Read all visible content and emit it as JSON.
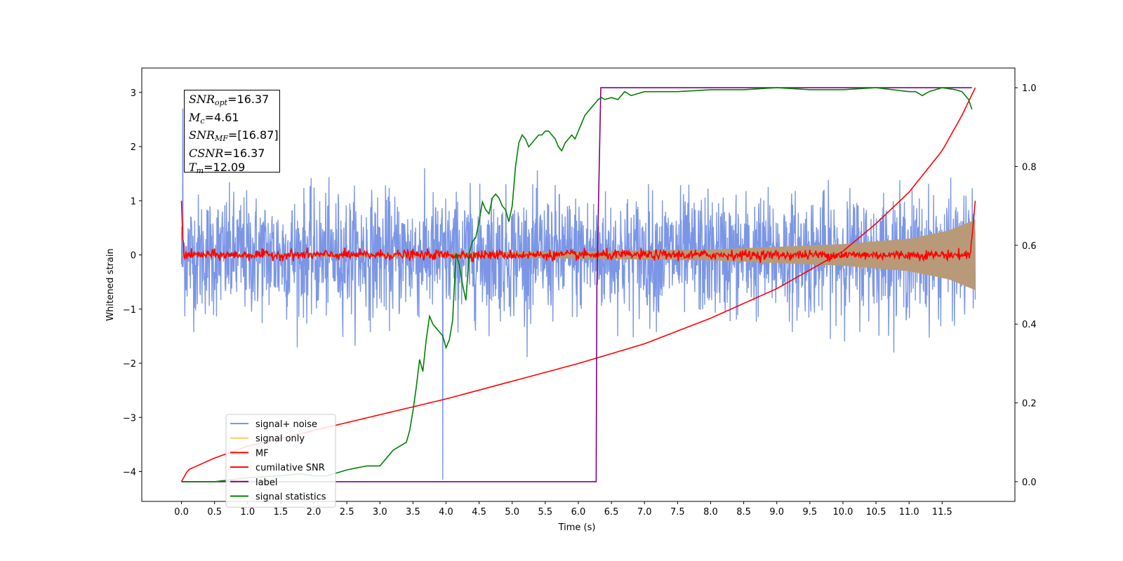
{
  "chart_data": {
    "type": "line",
    "xlabel": "Time (s)",
    "ylabel": "Whitened strain",
    "xlim": [
      -0.6,
      12.6
    ],
    "ylim": [
      -4.55,
      3.45
    ],
    "ylim_right": [
      -0.05,
      1.05
    ],
    "x_ticks": [
      "0.0",
      "0.5",
      "1.0",
      "1.5",
      "2.0",
      "2.5",
      "3.0",
      "3.5",
      "4.0",
      "4.5",
      "5.0",
      "5.5",
      "6.0",
      "6.5",
      "7.0",
      "7.5",
      "8.0",
      "8.5",
      "9.0",
      "9.5",
      "10.0",
      "10.5",
      "11.0",
      "11.5"
    ],
    "y_ticks_left": [
      "3",
      "2",
      "1",
      "0",
      "−1",
      "−2",
      "−3",
      "−4"
    ],
    "y_ticks_right": [
      "1.0",
      "0.8",
      "0.6",
      "0.4",
      "0.2",
      "0.0"
    ],
    "grid": false,
    "legend_position": "lower-left",
    "legend": [
      {
        "name": "signal+ noise",
        "color": "#7b96e6"
      },
      {
        "name": "signal only",
        "color": "#fbc96b"
      },
      {
        "name": "MF",
        "color": "#ff0000"
      },
      {
        "name": "cumilative SNR",
        "color": "#ff0000"
      },
      {
        "name": "label",
        "color": "#800080"
      },
      {
        "name": "signal statistics",
        "color": "#008000"
      }
    ],
    "annotation": [
      {
        "sym": "SNR",
        "sub": "opt",
        "rest": "=16.37"
      },
      {
        "sym": "M",
        "sub": "c",
        "rest": "=4.61"
      },
      {
        "sym": "SNR",
        "sub": "MF",
        "rest": "=[16.87]"
      },
      {
        "sym": "CSNR",
        "sub": "",
        "rest": "=16.37"
      },
      {
        "sym": "T",
        "sub": "m",
        "rest": "=12.09"
      }
    ],
    "series": [
      {
        "name": "signal+ noise",
        "axis": "left",
        "style": "noise band, approx. ±1.3 std spikes between 0 and 12 s",
        "x_range": [
          0.0,
          12.0
        ],
        "typical_min": -1.4,
        "typical_max": 1.3,
        "extreme_min": -4.15,
        "extreme_max": 2.7
      },
      {
        "name": "signal only",
        "axis": "left",
        "style": "chirp envelope (filled, growing)",
        "x": [
          0.0,
          4.0,
          8.0,
          10.0,
          11.0,
          11.6,
          11.9,
          12.0
        ],
        "upper": [
          0.02,
          0.04,
          0.1,
          0.2,
          0.3,
          0.45,
          0.6,
          0.65
        ],
        "lower": [
          -0.02,
          -0.04,
          -0.1,
          -0.2,
          -0.3,
          -0.45,
          -0.6,
          -0.65
        ]
      },
      {
        "name": "MF",
        "axis": "left",
        "style": "noisy line near zero",
        "x": [
          0.0,
          0.02,
          0.05,
          0.1,
          11.9,
          11.95,
          12.0
        ],
        "values": [
          1.0,
          0.3,
          0.1,
          0.05,
          0.05,
          0.3,
          1.0
        ]
      },
      {
        "name": "cumilative SNR",
        "axis": "right",
        "x": [
          0.0,
          0.1,
          0.5,
          1.0,
          2.0,
          3.0,
          4.0,
          5.0,
          6.0,
          7.0,
          8.0,
          9.0,
          10.0,
          10.5,
          11.0,
          11.5,
          11.8,
          12.0
        ],
        "values": [
          0.0,
          0.03,
          0.06,
          0.09,
          0.13,
          0.17,
          0.21,
          0.255,
          0.3,
          0.35,
          0.415,
          0.49,
          0.585,
          0.655,
          0.735,
          0.84,
          0.93,
          1.0
        ]
      },
      {
        "name": "label",
        "axis": "right",
        "x": [
          0.0,
          6.27,
          6.28,
          6.34,
          11.95
        ],
        "values": [
          0.0,
          0.0,
          0.5,
          1.0,
          1.0
        ]
      },
      {
        "name": "signal statistics",
        "axis": "right",
        "x": [
          0.0,
          0.5,
          1.0,
          1.5,
          1.8,
          2.0,
          2.2,
          2.5,
          2.8,
          3.0,
          3.1,
          3.2,
          3.3,
          3.4,
          3.45,
          3.5,
          3.55,
          3.6,
          3.65,
          3.7,
          3.75,
          3.8,
          3.85,
          3.9,
          3.95,
          4.0,
          4.05,
          4.1,
          4.15,
          4.2,
          4.25,
          4.3,
          4.35,
          4.4,
          4.45,
          4.5,
          4.55,
          4.6,
          4.65,
          4.7,
          4.75,
          4.8,
          4.85,
          4.9,
          4.95,
          5.0,
          5.05,
          5.1,
          5.15,
          5.2,
          5.25,
          5.3,
          5.35,
          5.4,
          5.45,
          5.5,
          5.55,
          5.6,
          5.65,
          5.7,
          5.75,
          5.8,
          5.85,
          5.9,
          5.95,
          6.0,
          6.05,
          6.1,
          6.15,
          6.2,
          6.25,
          6.3,
          6.35,
          6.4,
          6.5,
          6.6,
          6.7,
          6.8,
          6.9,
          7.0,
          7.2,
          7.5,
          8.0,
          8.5,
          9.0,
          9.5,
          10.0,
          10.5,
          11.0,
          11.1,
          11.2,
          11.3,
          11.5,
          11.7,
          11.8,
          11.9,
          11.95
        ],
        "values": [
          0.0,
          0.0,
          0.01,
          0.015,
          0.02,
          0.015,
          0.015,
          0.03,
          0.04,
          0.04,
          0.06,
          0.08,
          0.09,
          0.1,
          0.13,
          0.18,
          0.24,
          0.31,
          0.28,
          0.36,
          0.42,
          0.4,
          0.39,
          0.38,
          0.37,
          0.34,
          0.36,
          0.41,
          0.58,
          0.55,
          0.5,
          0.46,
          0.58,
          0.61,
          0.62,
          0.66,
          0.71,
          0.69,
          0.68,
          0.72,
          0.73,
          0.72,
          0.7,
          0.69,
          0.66,
          0.7,
          0.8,
          0.86,
          0.88,
          0.87,
          0.85,
          0.86,
          0.87,
          0.88,
          0.88,
          0.89,
          0.89,
          0.88,
          0.87,
          0.85,
          0.84,
          0.86,
          0.87,
          0.88,
          0.87,
          0.89,
          0.91,
          0.93,
          0.94,
          0.95,
          0.96,
          0.97,
          0.975,
          0.97,
          0.975,
          0.97,
          0.99,
          0.98,
          0.985,
          0.99,
          0.99,
          0.99,
          0.995,
          0.995,
          1.0,
          0.995,
          0.995,
          1.0,
          0.99,
          0.99,
          0.98,
          0.99,
          1.0,
          0.995,
          0.99,
          0.97,
          0.945
        ]
      }
    ]
  }
}
